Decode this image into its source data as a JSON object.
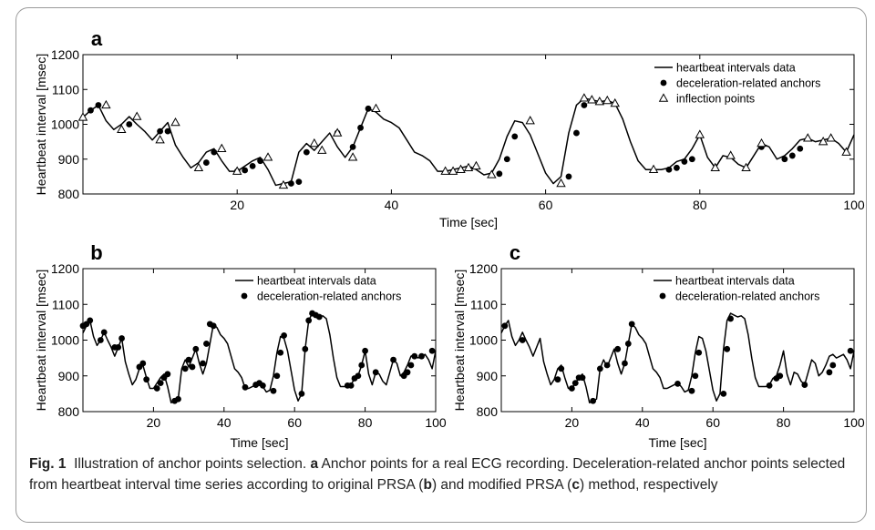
{
  "caption": {
    "fig_label": "Fig. 1",
    "intro": "Illustration of anchor points selection.",
    "a": "a",
    "part_a": "Anchor points for a real ECG recording. Deceleration-related anchor points selected from heartbeat interval time series according to original PRSA (",
    "b": "b",
    "part_b": ") and modified PRSA (",
    "c": "c",
    "part_c": ") method, respectively"
  },
  "colors": {
    "line": "#000000",
    "marker": "#000000",
    "triangle_fill": "#ffffff"
  },
  "chart_data": [
    {
      "panel": "a",
      "type": "line",
      "xlabel": "Time [sec]",
      "ylabel": "Heartbeat interval [msec]",
      "xlim": [
        0,
        100
      ],
      "ylim": [
        800,
        1200
      ],
      "xticks": [
        20,
        40,
        60,
        80,
        100
      ],
      "yticks": [
        800,
        900,
        1000,
        1100,
        1200
      ],
      "grid": false,
      "legend_placement": "top-right",
      "series": [
        {
          "name": "heartbeat intervals data",
          "kind": "line",
          "x": [
            0,
            1,
            2,
            3,
            4,
            5,
            6,
            7,
            8,
            9,
            10,
            11,
            12,
            13,
            14,
            15,
            16,
            17,
            18,
            19,
            20,
            21,
            22,
            23,
            24,
            25,
            26,
            27,
            28,
            29,
            30,
            31,
            32,
            33,
            34,
            35,
            36,
            37,
            38,
            39,
            40,
            41,
            42,
            43,
            44,
            45,
            46,
            47,
            48,
            49,
            50,
            51,
            52,
            53,
            54,
            55,
            56,
            57,
            58,
            59,
            60,
            61,
            62,
            63,
            64,
            65,
            66,
            67,
            68,
            69,
            70,
            71,
            72,
            73,
            74,
            75,
            76,
            77,
            78,
            79,
            80,
            81,
            82,
            83,
            84,
            85,
            86,
            87,
            88,
            89,
            90,
            91,
            92,
            93,
            94,
            95,
            96,
            97,
            98,
            99,
            100
          ],
          "y": [
            1020,
            1040,
            1055,
            1010,
            985,
            1000,
            1022,
            1000,
            980,
            955,
            980,
            1005,
            940,
            905,
            875,
            890,
            920,
            930,
            895,
            865,
            865,
            880,
            895,
            905,
            870,
            825,
            830,
            835,
            920,
            945,
            925,
            950,
            975,
            935,
            905,
            935,
            990,
            1045,
            1035,
            1015,
            1005,
            990,
            955,
            920,
            910,
            895,
            865,
            865,
            870,
            875,
            880,
            870,
            855,
            860,
            900,
            965,
            1010,
            1005,
            970,
            915,
            860,
            830,
            850,
            975,
            1055,
            1075,
            1070,
            1065,
            1068,
            1060,
            1015,
            950,
            895,
            870,
            870,
            870,
            875,
            893,
            900,
            930,
            970,
            905,
            875,
            910,
            905,
            885,
            875,
            910,
            945,
            935,
            900,
            910,
            930,
            955,
            960,
            950,
            955,
            960,
            945,
            920,
            970
          ]
        },
        {
          "name": "deceleration-related anchors",
          "kind": "dots",
          "x": [
            1,
            2,
            6,
            10,
            11,
            16,
            17,
            20,
            21,
            22,
            23,
            27,
            28,
            29,
            33,
            35,
            36,
            37,
            54,
            55,
            56,
            63,
            64,
            65,
            76,
            77,
            78,
            79,
            88,
            91,
            92,
            93
          ],
          "y": [
            1040,
            1055,
            1000,
            980,
            980,
            890,
            920,
            865,
            868,
            880,
            895,
            830,
            835,
            920,
            975,
            935,
            990,
            1045,
            858,
            900,
            965,
            850,
            975,
            1055,
            870,
            875,
            893,
            900,
            935,
            900,
            910,
            930
          ]
        },
        {
          "name": "inflection points",
          "kind": "triangles",
          "x": [
            0,
            3,
            5,
            7,
            10,
            12,
            15,
            18,
            20,
            24,
            26,
            30,
            31,
            33,
            35,
            38,
            47,
            48,
            49,
            50,
            51,
            53,
            58,
            62,
            65,
            66,
            67,
            68,
            69,
            74,
            80,
            82,
            84,
            86,
            88,
            94,
            96,
            97,
            99
          ],
          "y": [
            1020,
            1055,
            985,
            1022,
            955,
            1005,
            875,
            930,
            865,
            905,
            825,
            945,
            925,
            975,
            905,
            1045,
            865,
            865,
            870,
            875,
            880,
            855,
            1010,
            830,
            1075,
            1070,
            1065,
            1068,
            1060,
            870,
            970,
            875,
            910,
            875,
            945,
            960,
            950,
            960,
            920
          ]
        }
      ]
    },
    {
      "panel": "b",
      "type": "line",
      "xlabel": "Time [sec]",
      "ylabel": "Heartbeat interval [msec]",
      "xlim": [
        0,
        100
      ],
      "ylim": [
        800,
        1200
      ],
      "xticks": [
        20,
        40,
        60,
        80,
        100
      ],
      "yticks": [
        800,
        900,
        1000,
        1100,
        1200
      ],
      "grid": false,
      "legend_placement": "top-right",
      "series": [
        {
          "name": "heartbeat intervals data",
          "kind": "line",
          "x": [
            0,
            1,
            2,
            3,
            4,
            5,
            6,
            7,
            8,
            9,
            10,
            11,
            12,
            13,
            14,
            15,
            16,
            17,
            18,
            19,
            20,
            21,
            22,
            23,
            24,
            25,
            26,
            27,
            28,
            29,
            30,
            31,
            32,
            33,
            34,
            35,
            36,
            37,
            38,
            39,
            40,
            41,
            42,
            43,
            44,
            45,
            46,
            47,
            48,
            49,
            50,
            51,
            52,
            53,
            54,
            55,
            56,
            57,
            58,
            59,
            60,
            61,
            62,
            63,
            64,
            65,
            66,
            67,
            68,
            69,
            70,
            71,
            72,
            73,
            74,
            75,
            76,
            77,
            78,
            79,
            80,
            81,
            82,
            83,
            84,
            85,
            86,
            87,
            88,
            89,
            90,
            91,
            92,
            93,
            94,
            95,
            96,
            97,
            98,
            99,
            100
          ],
          "y": [
            1020,
            1040,
            1055,
            1010,
            985,
            1000,
            1022,
            1000,
            980,
            955,
            980,
            1005,
            940,
            905,
            875,
            890,
            920,
            930,
            895,
            865,
            865,
            880,
            895,
            905,
            870,
            825,
            830,
            835,
            920,
            945,
            925,
            950,
            975,
            935,
            905,
            935,
            990,
            1045,
            1035,
            1015,
            1005,
            990,
            955,
            920,
            910,
            895,
            865,
            865,
            870,
            875,
            880,
            870,
            855,
            860,
            900,
            965,
            1010,
            1005,
            970,
            915,
            860,
            830,
            850,
            975,
            1055,
            1075,
            1070,
            1065,
            1068,
            1060,
            1015,
            950,
            895,
            870,
            870,
            870,
            875,
            893,
            900,
            930,
            970,
            905,
            875,
            910,
            905,
            885,
            875,
            910,
            945,
            935,
            900,
            910,
            930,
            955,
            960,
            950,
            955,
            960,
            945,
            920,
            970
          ]
        },
        {
          "name": "deceleration-related anchors",
          "kind": "dots",
          "x": [
            0,
            1,
            2,
            5,
            6,
            9,
            10,
            11,
            16,
            17,
            18,
            21,
            22,
            23,
            24,
            26,
            27,
            29,
            30,
            31,
            32,
            34,
            35,
            36,
            37,
            46,
            49,
            50,
            51,
            54,
            55,
            56,
            57,
            62,
            63,
            64,
            65,
            66,
            67,
            75,
            76,
            77,
            78,
            79,
            80,
            83,
            88,
            91,
            92,
            93,
            94,
            96,
            99
          ],
          "y": [
            1040,
            1045,
            1055,
            1000,
            1022,
            980,
            980,
            1005,
            925,
            935,
            890,
            865,
            880,
            895,
            905,
            830,
            835,
            920,
            945,
            925,
            975,
            935,
            990,
            1045,
            1040,
            868,
            875,
            880,
            873,
            858,
            900,
            965,
            1013,
            850,
            975,
            1055,
            1075,
            1070,
            1065,
            873,
            873,
            893,
            900,
            930,
            970,
            910,
            945,
            900,
            910,
            930,
            955,
            955,
            970
          ]
        }
      ]
    },
    {
      "panel": "c",
      "type": "line",
      "xlabel": "Time [sec]",
      "ylabel": "Heartbeat interval [msec]",
      "xlim": [
        0,
        100
      ],
      "ylim": [
        800,
        1200
      ],
      "xticks": [
        20,
        40,
        60,
        80,
        100
      ],
      "yticks": [
        800,
        900,
        1000,
        1100,
        1200
      ],
      "grid": false,
      "legend_placement": "top-right",
      "series": [
        {
          "name": "heartbeat intervals data",
          "kind": "line",
          "x": [
            0,
            1,
            2,
            3,
            4,
            5,
            6,
            7,
            8,
            9,
            10,
            11,
            12,
            13,
            14,
            15,
            16,
            17,
            18,
            19,
            20,
            21,
            22,
            23,
            24,
            25,
            26,
            27,
            28,
            29,
            30,
            31,
            32,
            33,
            34,
            35,
            36,
            37,
            38,
            39,
            40,
            41,
            42,
            43,
            44,
            45,
            46,
            47,
            48,
            49,
            50,
            51,
            52,
            53,
            54,
            55,
            56,
            57,
            58,
            59,
            60,
            61,
            62,
            63,
            64,
            65,
            66,
            67,
            68,
            69,
            70,
            71,
            72,
            73,
            74,
            75,
            76,
            77,
            78,
            79,
            80,
            81,
            82,
            83,
            84,
            85,
            86,
            87,
            88,
            89,
            90,
            91,
            92,
            93,
            94,
            95,
            96,
            97,
            98,
            99,
            100
          ],
          "y": [
            1020,
            1040,
            1055,
            1010,
            985,
            1000,
            1022,
            1000,
            980,
            955,
            980,
            1005,
            940,
            905,
            875,
            890,
            920,
            930,
            895,
            865,
            865,
            880,
            895,
            905,
            870,
            825,
            830,
            835,
            920,
            945,
            925,
            950,
            975,
            935,
            905,
            935,
            990,
            1045,
            1035,
            1015,
            1005,
            990,
            955,
            920,
            910,
            895,
            865,
            865,
            870,
            875,
            880,
            870,
            855,
            860,
            900,
            965,
            1010,
            1005,
            970,
            915,
            860,
            830,
            850,
            975,
            1055,
            1075,
            1070,
            1065,
            1068,
            1060,
            1015,
            950,
            895,
            870,
            870,
            870,
            875,
            893,
            900,
            930,
            970,
            905,
            875,
            910,
            905,
            885,
            875,
            910,
            945,
            935,
            900,
            910,
            930,
            955,
            960,
            950,
            955,
            960,
            945,
            920,
            970
          ]
        },
        {
          "name": "deceleration-related anchors",
          "kind": "dots",
          "x": [
            1,
            6,
            16,
            17,
            20,
            21,
            22,
            23,
            26,
            28,
            30,
            33,
            35,
            36,
            37,
            50,
            54,
            55,
            56,
            63,
            64,
            65,
            76,
            78,
            79,
            86,
            93,
            94,
            99
          ],
          "y": [
            1040,
            1000,
            890,
            920,
            865,
            880,
            895,
            895,
            830,
            920,
            930,
            975,
            935,
            990,
            1045,
            878,
            858,
            900,
            965,
            850,
            975,
            1060,
            873,
            893,
            900,
            875,
            910,
            930,
            970
          ]
        }
      ]
    }
  ]
}
